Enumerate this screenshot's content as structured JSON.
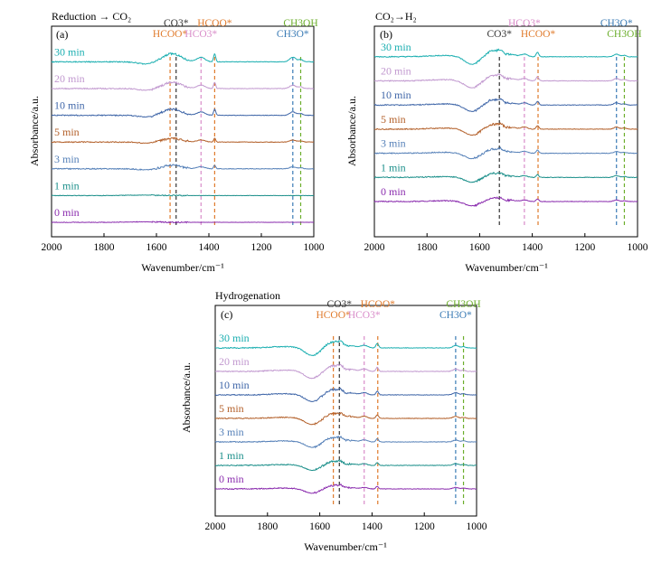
{
  "figure": {
    "xlabel": "Wavenumber/cm⁻¹",
    "ylabel": "Absorbance/a.u."
  },
  "colors": {
    "30 min": "#1aaeb0",
    "20 min": "#c198cf",
    "10 min": "#3f66a8",
    "5 min": "#b3602a",
    "3 min": "#5580b8",
    "1 min": "#1b8f8a",
    "0 min": "#8a2cae",
    "HCOO*": "#e07a2b",
    "CO3*": "#333333",
    "HCO3*": "#d98cc9",
    "CH3O*": "#3a7bb5",
    "CH3OH": "#6cae2c"
  },
  "chart_data": [
    {
      "id": "a",
      "type": "line",
      "title": "Reduction → CO₂",
      "panel_label": "(a)",
      "xlabel": "Wavenumber/cm⁻¹",
      "ylabel": "Absorbance/a.u.",
      "xlim": [
        2000,
        1000
      ],
      "x_ticks": [
        2000,
        1800,
        1600,
        1400,
        1200,
        1000
      ],
      "series": [
        {
          "name": "30 min",
          "offset": 6,
          "shape": "strong"
        },
        {
          "name": "20 min",
          "offset": 5,
          "shape": "medium"
        },
        {
          "name": "10 min",
          "offset": 4,
          "shape": "medium"
        },
        {
          "name": "5 min",
          "offset": 3,
          "shape": "weak"
        },
        {
          "name": "3 min",
          "offset": 2,
          "shape": "weak"
        },
        {
          "name": "1 min",
          "offset": 1,
          "shape": "flat"
        },
        {
          "name": "0 min",
          "offset": 0,
          "shape": "flat"
        }
      ],
      "annotations": [
        {
          "label": "HCOO*",
          "x": 1548,
          "color_key": "HCOO*"
        },
        {
          "label": "CO3*",
          "x": 1525,
          "color_key": "CO3*"
        },
        {
          "label": "HCO3*",
          "x": 1430,
          "color_key": "HCO3*"
        },
        {
          "label": "HCOO*",
          "x": 1378,
          "color_key": "HCOO*"
        },
        {
          "label": "CH3O*",
          "x": 1080,
          "color_key": "CH3O*"
        },
        {
          "label": "CH3OH",
          "x": 1050,
          "color_key": "CH3OH"
        }
      ]
    },
    {
      "id": "b",
      "type": "line",
      "title": "CO₂→H₂",
      "panel_label": "(b)",
      "xlabel": "Wavenumber/cm⁻¹",
      "ylabel": "Absorbance/a.u.",
      "xlim": [
        2000,
        1000
      ],
      "x_ticks": [
        2000,
        1800,
        1600,
        1400,
        1200,
        1000
      ],
      "series": [
        {
          "name": "30 min",
          "offset": 6,
          "shape": "dip"
        },
        {
          "name": "20 min",
          "offset": 5,
          "shape": "dip"
        },
        {
          "name": "10 min",
          "offset": 4,
          "shape": "dip"
        },
        {
          "name": "5 min",
          "offset": 3,
          "shape": "dip"
        },
        {
          "name": "3 min",
          "offset": 2,
          "shape": "dip"
        },
        {
          "name": "1 min",
          "offset": 1,
          "shape": "dip"
        },
        {
          "name": "0 min",
          "offset": 0,
          "shape": "dip"
        }
      ],
      "annotations": [
        {
          "label": "CO3*",
          "x": 1525,
          "color_key": "CO3*"
        },
        {
          "label": "HCO3*",
          "x": 1430,
          "color_key": "HCO3*"
        },
        {
          "label": "HCOO*",
          "x": 1378,
          "color_key": "HCOO*"
        },
        {
          "label": "CH3O*",
          "x": 1080,
          "color_key": "CH3O*"
        },
        {
          "label": "CH3OH",
          "x": 1050,
          "color_key": "CH3OH"
        }
      ]
    },
    {
      "id": "c",
      "type": "line",
      "title": "Hydrogenation",
      "panel_label": "(c)",
      "xlabel": "Wavenumber/cm⁻¹",
      "ylabel": "Absorbance/a.u.",
      "xlim": [
        2000,
        1000
      ],
      "x_ticks": [
        2000,
        1800,
        1600,
        1400,
        1200,
        1000
      ],
      "series": [
        {
          "name": "30 min",
          "offset": 6,
          "shape": "dip"
        },
        {
          "name": "20 min",
          "offset": 5,
          "shape": "dip"
        },
        {
          "name": "10 min",
          "offset": 4,
          "shape": "dip"
        },
        {
          "name": "5 min",
          "offset": 3,
          "shape": "dip"
        },
        {
          "name": "3 min",
          "offset": 2,
          "shape": "dip"
        },
        {
          "name": "1 min",
          "offset": 1,
          "shape": "dip"
        },
        {
          "name": "0 min",
          "offset": 0,
          "shape": "dip"
        }
      ],
      "annotations": [
        {
          "label": "HCOO*",
          "x": 1548,
          "color_key": "HCOO*"
        },
        {
          "label": "CO3*",
          "x": 1525,
          "color_key": "CO3*"
        },
        {
          "label": "HCO3*",
          "x": 1430,
          "color_key": "HCO3*"
        },
        {
          "label": "HCOO*",
          "x": 1378,
          "color_key": "HCOO*"
        },
        {
          "label": "CH3O*",
          "x": 1080,
          "color_key": "CH3O*"
        },
        {
          "label": "CH3OH",
          "x": 1050,
          "color_key": "CH3OH"
        }
      ]
    }
  ]
}
